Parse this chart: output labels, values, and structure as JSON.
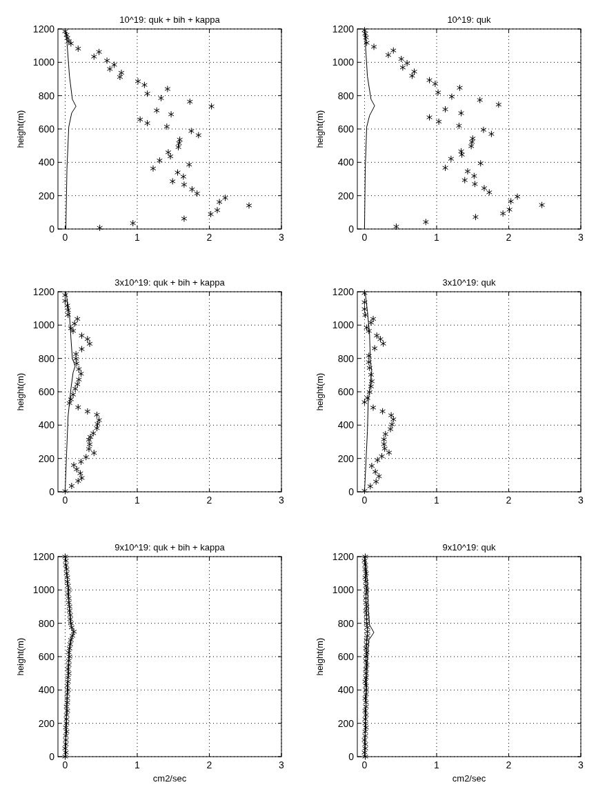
{
  "chart_data": [
    {
      "type": "scatter",
      "title": "10^19: quk + bih + kappa",
      "ylabel": "height(m)",
      "xlim": [
        -0.1,
        3
      ],
      "ylim": [
        0,
        1200
      ],
      "xticks": [
        0,
        1,
        2,
        3
      ],
      "yticks": [
        0,
        200,
        400,
        600,
        800,
        1000,
        1200
      ],
      "grid": true,
      "series": [
        {
          "type": "scatter",
          "marker": "cross",
          "color": "#000000",
          "x": [
            0.0,
            0.02,
            0.03,
            0.05,
            0.08,
            0.18,
            0.4,
            0.47,
            0.58,
            0.68,
            0.62,
            0.78,
            0.76,
            1.01,
            1.1,
            1.14,
            1.42,
            1.33,
            1.73,
            2.03,
            1.27,
            1.47,
            1.04,
            1.14,
            1.41,
            1.75,
            1.85,
            1.59,
            1.58,
            1.57,
            1.43,
            1.46,
            1.31,
            1.22,
            1.72,
            1.56,
            1.64,
            1.49,
            1.65,
            1.76,
            1.83,
            2.22,
            2.14,
            2.11,
            2.02,
            2.55,
            1.65,
            0.94,
            0.48
          ],
          "values": [
            1186,
            1165,
            1145,
            1127,
            1113,
            1082,
            1034,
            1062,
            1010,
            985,
            960,
            937,
            912,
            886,
            864,
            812,
            840,
            785,
            764,
            736,
            711,
            688,
            657,
            635,
            614,
            588,
            563,
            536,
            515,
            491,
            460,
            436,
            411,
            363,
            386,
            339,
            314,
            286,
            266,
            238,
            213,
            187,
            162,
            113,
            89,
            141,
            62,
            35,
            7
          ]
        },
        {
          "type": "line",
          "marker": "none",
          "color": "#000000",
          "x": [
            0.01,
            0.025,
            0.05,
            0.09,
            0.15,
            0.1,
            0.06,
            0.02,
            0.0
          ],
          "values": [
            0,
            363,
            612,
            695,
            736,
            778,
            916,
            1151,
            1193
          ]
        }
      ]
    },
    {
      "type": "scatter",
      "title": "10^19: quk",
      "ylabel": "height(m)",
      "xlim": [
        -0.1,
        3
      ],
      "ylim": [
        0,
        1200
      ],
      "xticks": [
        0,
        1,
        2,
        3
      ],
      "yticks": [
        0,
        200,
        400,
        600,
        800,
        1000,
        1200
      ],
      "grid": true,
      "series": [
        {
          "type": "scatter",
          "marker": "cross",
          "color": "#000000",
          "x": [
            0.0,
            0.01,
            0.02,
            0.03,
            0.13,
            0.33,
            0.4,
            0.51,
            0.59,
            0.53,
            0.69,
            0.66,
            0.9,
            0.98,
            1.02,
            1.32,
            1.21,
            1.6,
            1.86,
            1.12,
            1.34,
            0.9,
            1.03,
            1.31,
            1.65,
            1.76,
            1.5,
            1.49,
            1.48,
            1.34,
            1.35,
            1.2,
            1.12,
            1.61,
            1.43,
            1.52,
            1.39,
            1.53,
            1.66,
            1.73,
            2.12,
            2.03,
            2.01,
            1.92,
            2.46,
            1.54,
            0.85,
            0.44
          ],
          "values": [
            1193,
            1172,
            1149,
            1117,
            1093,
            1044,
            1071,
            1020,
            995,
            969,
            944,
            919,
            893,
            871,
            819,
            847,
            794,
            774,
            746,
            718,
            695,
            670,
            644,
            619,
            595,
            570,
            543,
            522,
            497,
            466,
            446,
            421,
            367,
            394,
            346,
            318,
            293,
            270,
            245,
            220,
            194,
            166,
            116,
            93,
            144,
            72,
            42,
            14
          ]
        },
        {
          "type": "line",
          "marker": "none",
          "color": "#000000",
          "x": [
            0.0,
            0.01,
            0.03,
            0.07,
            0.14,
            0.09,
            0.04,
            0.01,
            0.0
          ],
          "values": [
            0,
            363,
            612,
            681,
            739,
            778,
            916,
            1124,
            1193
          ]
        }
      ]
    },
    {
      "type": "scatter",
      "title": "3x10^19: quk + bih + kappa",
      "ylabel": "height(m)",
      "xlim": [
        -0.1,
        3
      ],
      "ylim": [
        0,
        1200
      ],
      "xticks": [
        0,
        1,
        2,
        3
      ],
      "yticks": [
        0,
        200,
        400,
        600,
        800,
        1000,
        1200
      ],
      "grid": true,
      "series": [
        {
          "type": "scatter",
          "marker": "cross",
          "color": "#000000",
          "x": [
            0.0,
            0.09,
            0.18,
            0.23,
            0.21,
            0.16,
            0.12,
            0.22,
            0.29,
            0.4,
            0.33,
            0.34,
            0.33,
            0.35,
            0.39,
            0.44,
            0.45,
            0.47,
            0.44,
            0.31,
            0.18,
            0.06,
            0.08,
            0.11,
            0.14,
            0.17,
            0.19,
            0.22,
            0.19,
            0.16,
            0.15,
            0.15,
            0.23,
            0.34,
            0.31,
            0.23,
            0.11,
            0.08,
            0.13,
            0.17,
            0.04,
            0.04,
            0.03,
            0.0,
            0.0
          ],
          "values": [
            4,
            35,
            65,
            83,
            111,
            135,
            160,
            180,
            208,
            233,
            257,
            285,
            312,
            329,
            351,
            382,
            407,
            430,
            462,
            482,
            507,
            532,
            555,
            583,
            618,
            645,
            673,
            708,
            736,
            770,
            798,
            826,
            856,
            888,
            916,
            937,
            965,
            981,
            1009,
            1037,
            1062,
            1090,
            1117,
            1145,
            1180
          ]
        },
        {
          "type": "line",
          "marker": "none",
          "color": "#000000",
          "x": [
            0.0,
            0.02,
            0.04,
            0.06,
            0.08,
            0.11,
            0.14,
            0.1,
            0.08,
            0.06,
            0.01
          ],
          "values": [
            4,
            229,
            451,
            534,
            618,
            715,
            756,
            798,
            923,
            1062,
            1200
          ]
        }
      ]
    },
    {
      "type": "scatter",
      "title": "3x10^19: quk",
      "ylabel": "height(m)",
      "xlim": [
        -0.1,
        3
      ],
      "ylim": [
        0,
        1200
      ],
      "xticks": [
        0,
        1,
        2,
        3
      ],
      "yticks": [
        0,
        200,
        400,
        600,
        800,
        1000,
        1200
      ],
      "grid": true,
      "series": [
        {
          "type": "scatter",
          "marker": "cross",
          "color": "#000000",
          "x": [
            0.0,
            0.08,
            0.16,
            0.2,
            0.15,
            0.1,
            0.18,
            0.24,
            0.34,
            0.28,
            0.27,
            0.27,
            0.29,
            0.36,
            0.38,
            0.4,
            0.37,
            0.25,
            0.12,
            0.0,
            0.04,
            0.07,
            0.09,
            0.1,
            0.09,
            0.07,
            0.06,
            0.06,
            0.14,
            0.26,
            0.22,
            0.17,
            0.06,
            0.03,
            0.09,
            0.12,
            0.01,
            0.0,
            0.0,
            0.0
          ],
          "values": [
            6,
            33,
            61,
            93,
            120,
            155,
            190,
            213,
            235,
            259,
            286,
            314,
            346,
            376,
            404,
            435,
            459,
            483,
            505,
            538,
            563,
            598,
            632,
            663,
            702,
            743,
            778,
            816,
            861,
            889,
            916,
            937,
            965,
            985,
            1015,
            1037,
            1061,
            1096,
            1137,
            1193
          ]
        },
        {
          "type": "line",
          "marker": "none",
          "color": "#000000",
          "x": [
            0.0,
            0.04,
            0.05,
            0.07,
            0.1,
            0.08,
            0.07,
            0.04,
            0.01
          ],
          "values": [
            0,
            363,
            530,
            612,
            723,
            791,
            944,
            1082,
            1193
          ]
        }
      ]
    },
    {
      "type": "scatter",
      "title": "9x10^19: quk + bih + kappa",
      "xlabel": "cm2/sec",
      "ylabel": "height(m)",
      "xlim": [
        -0.1,
        3
      ],
      "ylim": [
        0,
        1200
      ],
      "xticks": [
        0,
        1,
        2,
        3
      ],
      "yticks": [
        0,
        200,
        400,
        600,
        800,
        1000,
        1200
      ],
      "grid": true,
      "series": [
        {
          "type": "scatter",
          "marker": "cross",
          "color": "#000000",
          "x": [
            0.0,
            0.01,
            0.0,
            0.01,
            0.01,
            0.01,
            0.02,
            0.01,
            0.02,
            0.02,
            0.02,
            0.03,
            0.02,
            0.03,
            0.03,
            0.03,
            0.04,
            0.03,
            0.04,
            0.04,
            0.05,
            0.04,
            0.05,
            0.05,
            0.06,
            0.05,
            0.06,
            0.07,
            0.08,
            0.1,
            0.12,
            0.09,
            0.08,
            0.07,
            0.07,
            0.06,
            0.06,
            0.05,
            0.05,
            0.04,
            0.05,
            0.04,
            0.03,
            0.03,
            0.02,
            0.02,
            0.01,
            0.01,
            0.0
          ],
          "values": [
            0,
            25,
            50,
            75,
            100,
            125,
            150,
            175,
            200,
            225,
            250,
            275,
            300,
            325,
            350,
            375,
            400,
            425,
            450,
            475,
            500,
            525,
            550,
            575,
            600,
            625,
            650,
            675,
            700,
            725,
            750,
            775,
            800,
            825,
            850,
            875,
            900,
            925,
            950,
            975,
            1000,
            1025,
            1050,
            1075,
            1100,
            1125,
            1150,
            1175,
            1200
          ]
        },
        {
          "type": "line",
          "marker": "none",
          "color": "#000000",
          "x": [
            0.0,
            0.02,
            0.05,
            0.08,
            0.12,
            0.08,
            0.05,
            0.03,
            0.0
          ],
          "values": [
            0,
            300,
            600,
            700,
            745,
            790,
            950,
            1080,
            1200
          ]
        }
      ]
    },
    {
      "type": "scatter",
      "title": "9x10^19: quk",
      "xlabel": "cm2/sec",
      "ylabel": "height(m)",
      "xlim": [
        -0.1,
        3
      ],
      "ylim": [
        0,
        1200
      ],
      "xticks": [
        0,
        1,
        2,
        3
      ],
      "yticks": [
        0,
        200,
        400,
        600,
        800,
        1000,
        1200
      ],
      "grid": true,
      "series": [
        {
          "type": "scatter",
          "marker": "cross",
          "color": "#000000",
          "x": [
            0.01,
            0.0,
            0.01,
            0.01,
            0.0,
            0.01,
            0.01,
            0.02,
            0.01,
            0.01,
            0.02,
            0.01,
            0.02,
            0.02,
            0.01,
            0.02,
            0.02,
            0.02,
            0.01,
            0.02,
            0.02,
            0.02,
            0.03,
            0.02,
            0.02,
            0.03,
            0.02,
            0.03,
            0.03,
            0.04,
            0.04,
            0.04,
            0.03,
            0.03,
            0.03,
            0.02,
            0.03,
            0.02,
            0.02,
            0.02,
            0.03,
            0.02,
            0.02,
            0.01,
            0.02,
            0.01,
            0.01,
            0.0,
            0.01
          ],
          "values": [
            0,
            25,
            50,
            75,
            100,
            125,
            150,
            175,
            200,
            225,
            250,
            275,
            300,
            325,
            350,
            375,
            400,
            425,
            450,
            475,
            500,
            525,
            550,
            575,
            600,
            625,
            650,
            675,
            700,
            725,
            750,
            775,
            800,
            825,
            850,
            875,
            900,
            925,
            950,
            975,
            1000,
            1025,
            1050,
            1075,
            1100,
            1125,
            1150,
            1175,
            1200
          ]
        },
        {
          "type": "line",
          "marker": "none",
          "color": "#000000",
          "x": [
            0.0,
            0.02,
            0.04,
            0.06,
            0.13,
            0.07,
            0.05,
            0.04,
            0.01
          ],
          "values": [
            0,
            300,
            600,
            700,
            745,
            790,
            900,
            1050,
            1200
          ]
        }
      ]
    }
  ]
}
